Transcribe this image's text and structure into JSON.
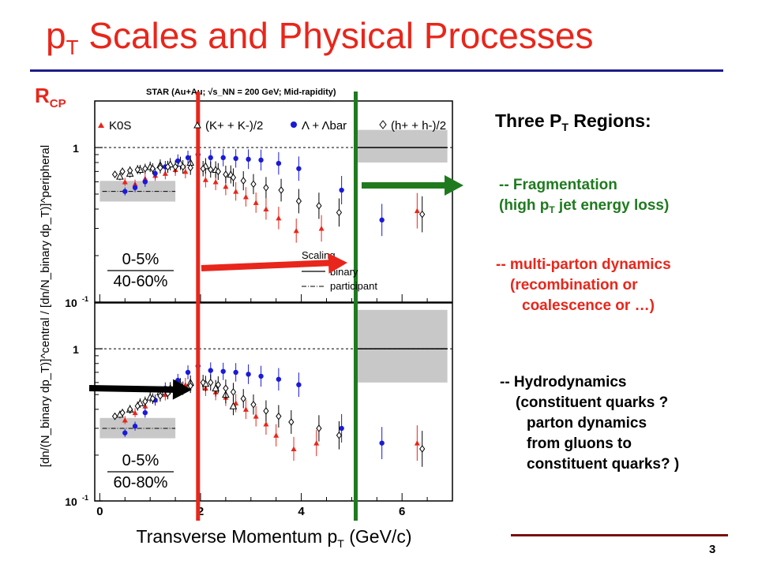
{
  "slide": {
    "title_pre": "p",
    "title_sub": "T",
    "title_post": " Scales and Physical Processes",
    "page_number": "3",
    "accent_color": "#e8261b",
    "rule_color": "#1c1c8c"
  },
  "plot_label": {
    "main": "R",
    "sub": "CP"
  },
  "regions": {
    "title_pre": "Three P",
    "title_sub": "T",
    "title_post": " Regions:",
    "fragmentation": {
      "line1": "-- Fragmentation",
      "line2_pre": "(high p",
      "line2_sub": "T",
      "line2_post": " jet energy loss)",
      "color": "#1f7a1f"
    },
    "multiparton": {
      "lines": [
        "-- multi-parton dynamics",
        "(recombination or",
        "coalescence or …)"
      ],
      "color": "#e8261b"
    },
    "hydro": {
      "lines": [
        "-- Hydrodynamics",
        "(constituent quarks ?",
        "parton dynamics",
        "from gluons to",
        "constituent quarks? )"
      ],
      "color": "#000000"
    }
  },
  "chart_data": {
    "type": "scatter",
    "header": "STAR (Au+Au; √s_NN = 200 GeV; Mid-rapidity)",
    "xlabel": "Transverse Momentum p_T (GeV/c)",
    "ylabel": "[dn/(N_binary dp_T)]^central / [dn/N_binary dp_T)]^peripheral",
    "xlim": [
      -0.1,
      7.0
    ],
    "ylim": [
      0.1,
      2.0
    ],
    "log_y": true,
    "x_ticks": [
      0,
      2,
      4,
      6
    ],
    "y_ticks": [
      {
        "value": 1,
        "label": "1"
      },
      {
        "value": 0.1,
        "label": "10^-1"
      }
    ],
    "vertical_lines": [
      {
        "x": 1.95,
        "color": "#e8261b"
      },
      {
        "x": 5.08,
        "color": "#1f7a1f"
      }
    ],
    "legend": {
      "species": [
        {
          "marker": "triangle",
          "color": "#e8261b",
          "text": "K0S"
        },
        {
          "marker": "open-triangle",
          "color": "#000000",
          "text": "(K+ + K-)/2"
        },
        {
          "marker": "circle",
          "color": "#1a1ad8",
          "text": "Λ + Λbar"
        },
        {
          "marker": "open-diamond",
          "color": "#000000",
          "text": "(h+ + h-)/2"
        }
      ],
      "scaling": {
        "title": "Scaling",
        "binary": "binary",
        "participant": "participant"
      }
    },
    "panels": [
      {
        "name": "0-5% / 40-60%",
        "centrality_num": "0-5%",
        "centrality_den": "40-60%",
        "participant_level": 0.52,
        "series": [
          {
            "name": "K0S",
            "marker": "triangle",
            "color": "#e8261b",
            "points": [
              [
                0.5,
                0.6
              ],
              [
                0.7,
                0.58
              ],
              [
                0.9,
                0.63
              ],
              [
                1.1,
                0.66
              ],
              [
                1.3,
                0.68
              ],
              [
                1.5,
                0.72
              ],
              [
                1.7,
                0.7
              ],
              [
                2.1,
                0.62
              ],
              [
                2.3,
                0.6
              ],
              [
                2.5,
                0.56
              ],
              [
                2.7,
                0.52
              ],
              [
                2.9,
                0.48
              ],
              [
                3.1,
                0.44
              ],
              [
                3.3,
                0.4
              ],
              [
                3.55,
                0.35
              ],
              [
                3.9,
                0.29
              ],
              [
                4.4,
                0.3
              ],
              [
                6.3,
                0.39
              ]
            ]
          },
          {
            "name": "K++K-",
            "marker": "open-triangle",
            "color": "#000000",
            "points": [
              [
                0.4,
                0.65
              ],
              [
                0.6,
                0.68
              ],
              [
                0.8,
                0.72
              ],
              [
                1.0,
                0.75
              ],
              [
                1.2,
                0.77
              ],
              [
                1.4,
                0.78
              ],
              [
                1.6,
                0.79
              ],
              [
                1.8,
                0.8
              ],
              [
                2.1,
                0.76
              ],
              [
                2.3,
                0.72
              ],
              [
                2.6,
                0.67
              ]
            ]
          },
          {
            "name": "Lambda",
            "marker": "circle",
            "color": "#1a1ad8",
            "points": [
              [
                0.5,
                0.52
              ],
              [
                0.7,
                0.55
              ],
              [
                0.9,
                0.6
              ],
              [
                1.1,
                0.68
              ],
              [
                1.3,
                0.75
              ],
              [
                1.55,
                0.82
              ],
              [
                1.75,
                0.86
              ],
              [
                1.95,
                0.9
              ],
              [
                2.2,
                0.86
              ],
              [
                2.45,
                0.86
              ],
              [
                2.7,
                0.85
              ],
              [
                2.95,
                0.84
              ],
              [
                3.2,
                0.83
              ],
              [
                3.55,
                0.79
              ],
              [
                3.95,
                0.73
              ],
              [
                4.8,
                0.53
              ],
              [
                5.6,
                0.34
              ]
            ]
          },
          {
            "name": "h++h-",
            "marker": "open-diamond",
            "color": "#000000",
            "points": [
              [
                0.3,
                0.67
              ],
              [
                0.45,
                0.7
              ],
              [
                0.6,
                0.71
              ],
              [
                0.75,
                0.72
              ],
              [
                0.9,
                0.73
              ],
              [
                1.05,
                0.73
              ],
              [
                1.2,
                0.74
              ],
              [
                1.35,
                0.75
              ],
              [
                1.5,
                0.75
              ],
              [
                1.65,
                0.75
              ],
              [
                1.8,
                0.74
              ],
              [
                2.05,
                0.73
              ],
              [
                2.2,
                0.72
              ],
              [
                2.35,
                0.7
              ],
              [
                2.5,
                0.67
              ],
              [
                2.65,
                0.64
              ],
              [
                2.85,
                0.61
              ],
              [
                3.05,
                0.58
              ],
              [
                3.3,
                0.55
              ],
              [
                3.6,
                0.53
              ],
              [
                3.95,
                0.45
              ],
              [
                4.35,
                0.42
              ],
              [
                4.75,
                0.38
              ],
              [
                6.4,
                0.37
              ]
            ]
          }
        ]
      },
      {
        "name": "0-5% / 60-80%",
        "centrality_num": "0-5%",
        "centrality_den": "60-80%",
        "participant_level": 0.3,
        "series": [
          {
            "name": "K0S",
            "marker": "triangle",
            "color": "#e8261b",
            "points": [
              [
                0.5,
                0.34
              ],
              [
                0.7,
                0.38
              ],
              [
                0.9,
                0.42
              ],
              [
                1.1,
                0.46
              ],
              [
                1.3,
                0.5
              ],
              [
                1.5,
                0.55
              ],
              [
                1.7,
                0.58
              ],
              [
                2.1,
                0.55
              ],
              [
                2.3,
                0.52
              ],
              [
                2.5,
                0.48
              ],
              [
                2.7,
                0.44
              ],
              [
                2.9,
                0.4
              ],
              [
                3.1,
                0.36
              ],
              [
                3.3,
                0.32
              ],
              [
                3.5,
                0.27
              ],
              [
                3.85,
                0.22
              ],
              [
                4.3,
                0.24
              ],
              [
                6.3,
                0.24
              ]
            ]
          },
          {
            "name": "K++K-",
            "marker": "open-triangle",
            "color": "#000000",
            "points": [
              [
                0.4,
                0.37
              ],
              [
                0.6,
                0.4
              ],
              [
                0.8,
                0.44
              ],
              [
                1.0,
                0.48
              ],
              [
                1.2,
                0.52
              ],
              [
                1.4,
                0.55
              ],
              [
                1.6,
                0.58
              ],
              [
                1.8,
                0.6
              ],
              [
                2.1,
                0.59
              ],
              [
                2.3,
                0.55
              ],
              [
                2.5,
                0.5
              ],
              [
                2.65,
                0.42
              ]
            ]
          },
          {
            "name": "Lambda",
            "marker": "circle",
            "color": "#1a1ad8",
            "points": [
              [
                0.5,
                0.28
              ],
              [
                0.7,
                0.31
              ],
              [
                0.9,
                0.38
              ],
              [
                1.1,
                0.46
              ],
              [
                1.3,
                0.55
              ],
              [
                1.55,
                0.62
              ],
              [
                1.75,
                0.7
              ],
              [
                1.95,
                0.77
              ],
              [
                2.2,
                0.72
              ],
              [
                2.45,
                0.71
              ],
              [
                2.7,
                0.7
              ],
              [
                2.95,
                0.68
              ],
              [
                3.2,
                0.66
              ],
              [
                3.55,
                0.63
              ],
              [
                3.95,
                0.58
              ],
              [
                4.8,
                0.3
              ],
              [
                5.6,
                0.24
              ]
            ]
          },
          {
            "name": "h++h-",
            "marker": "open-diamond",
            "color": "#000000",
            "points": [
              [
                0.3,
                0.36
              ],
              [
                0.45,
                0.38
              ],
              [
                0.6,
                0.4
              ],
              [
                0.75,
                0.42
              ],
              [
                0.9,
                0.45
              ],
              [
                1.05,
                0.47
              ],
              [
                1.2,
                0.49
              ],
              [
                1.35,
                0.51
              ],
              [
                1.5,
                0.53
              ],
              [
                1.65,
                0.55
              ],
              [
                1.8,
                0.57
              ],
              [
                2.05,
                0.6
              ],
              [
                2.2,
                0.6
              ],
              [
                2.35,
                0.58
              ],
              [
                2.5,
                0.55
              ],
              [
                2.65,
                0.52
              ],
              [
                2.85,
                0.47
              ],
              [
                3.05,
                0.43
              ],
              [
                3.3,
                0.39
              ],
              [
                3.55,
                0.36
              ],
              [
                3.8,
                0.33
              ],
              [
                4.35,
                0.3
              ],
              [
                4.75,
                0.27
              ],
              [
                6.4,
                0.22
              ]
            ]
          }
        ]
      }
    ]
  }
}
